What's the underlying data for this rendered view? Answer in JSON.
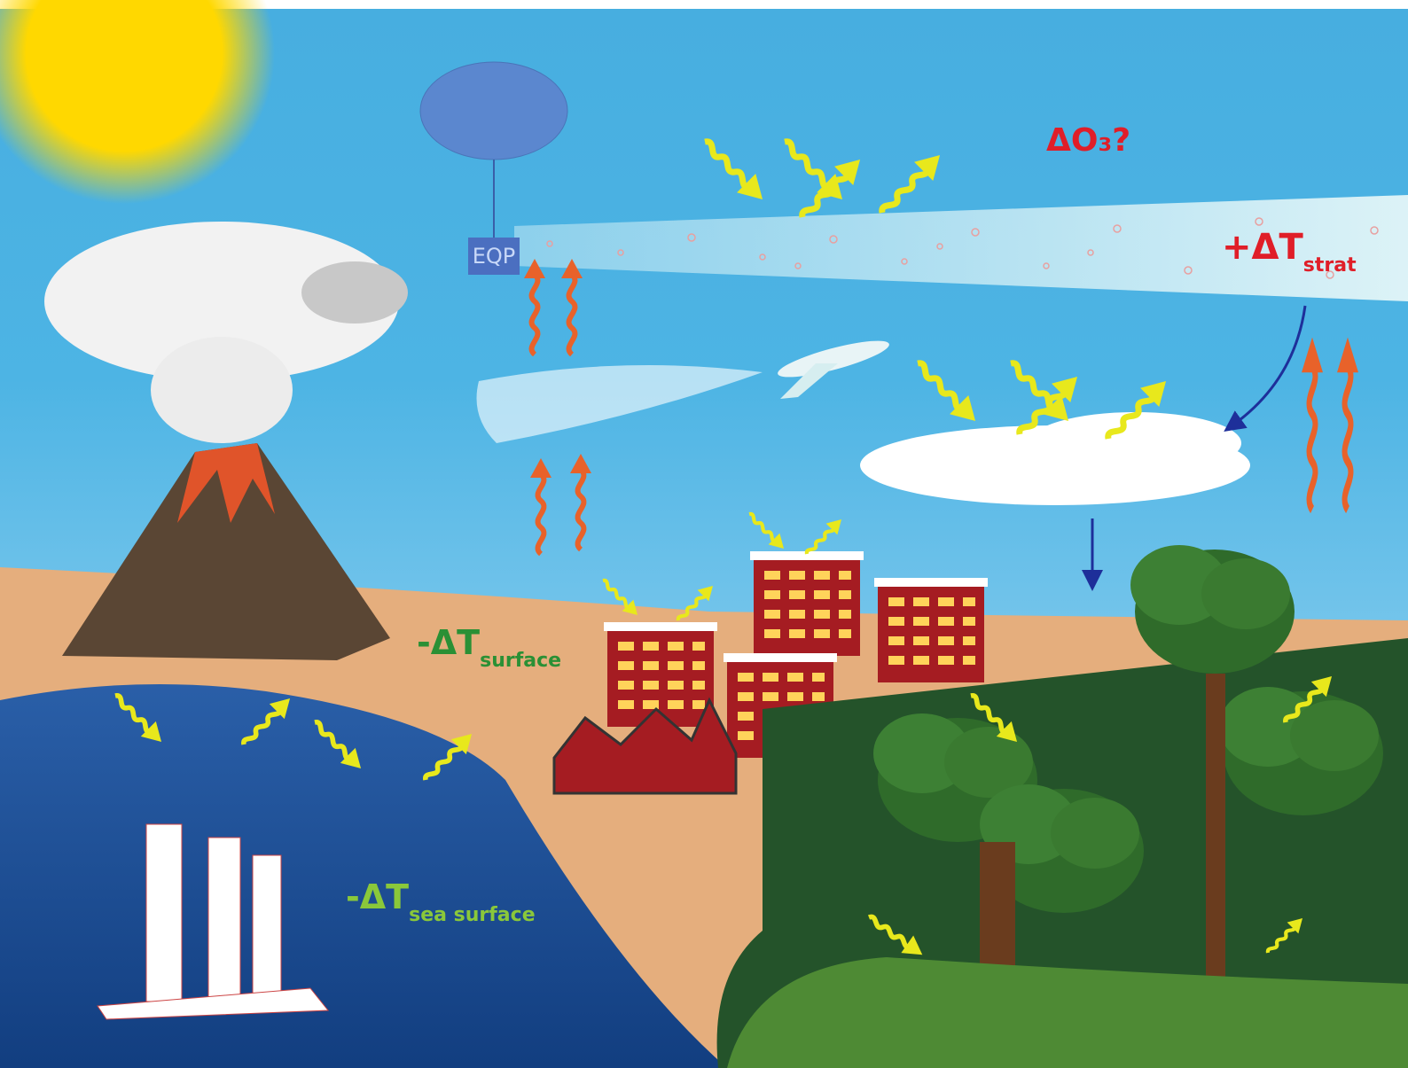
{
  "labels": {
    "eqp": "EQP",
    "ozone": "ΔO₃?",
    "strat": {
      "main": "+ΔT",
      "sub": "strat"
    },
    "surface": {
      "main": "-ΔT",
      "sub": "surface"
    },
    "sea_surface": {
      "main": "-ΔT",
      "sub": "sea surface"
    }
  }
}
